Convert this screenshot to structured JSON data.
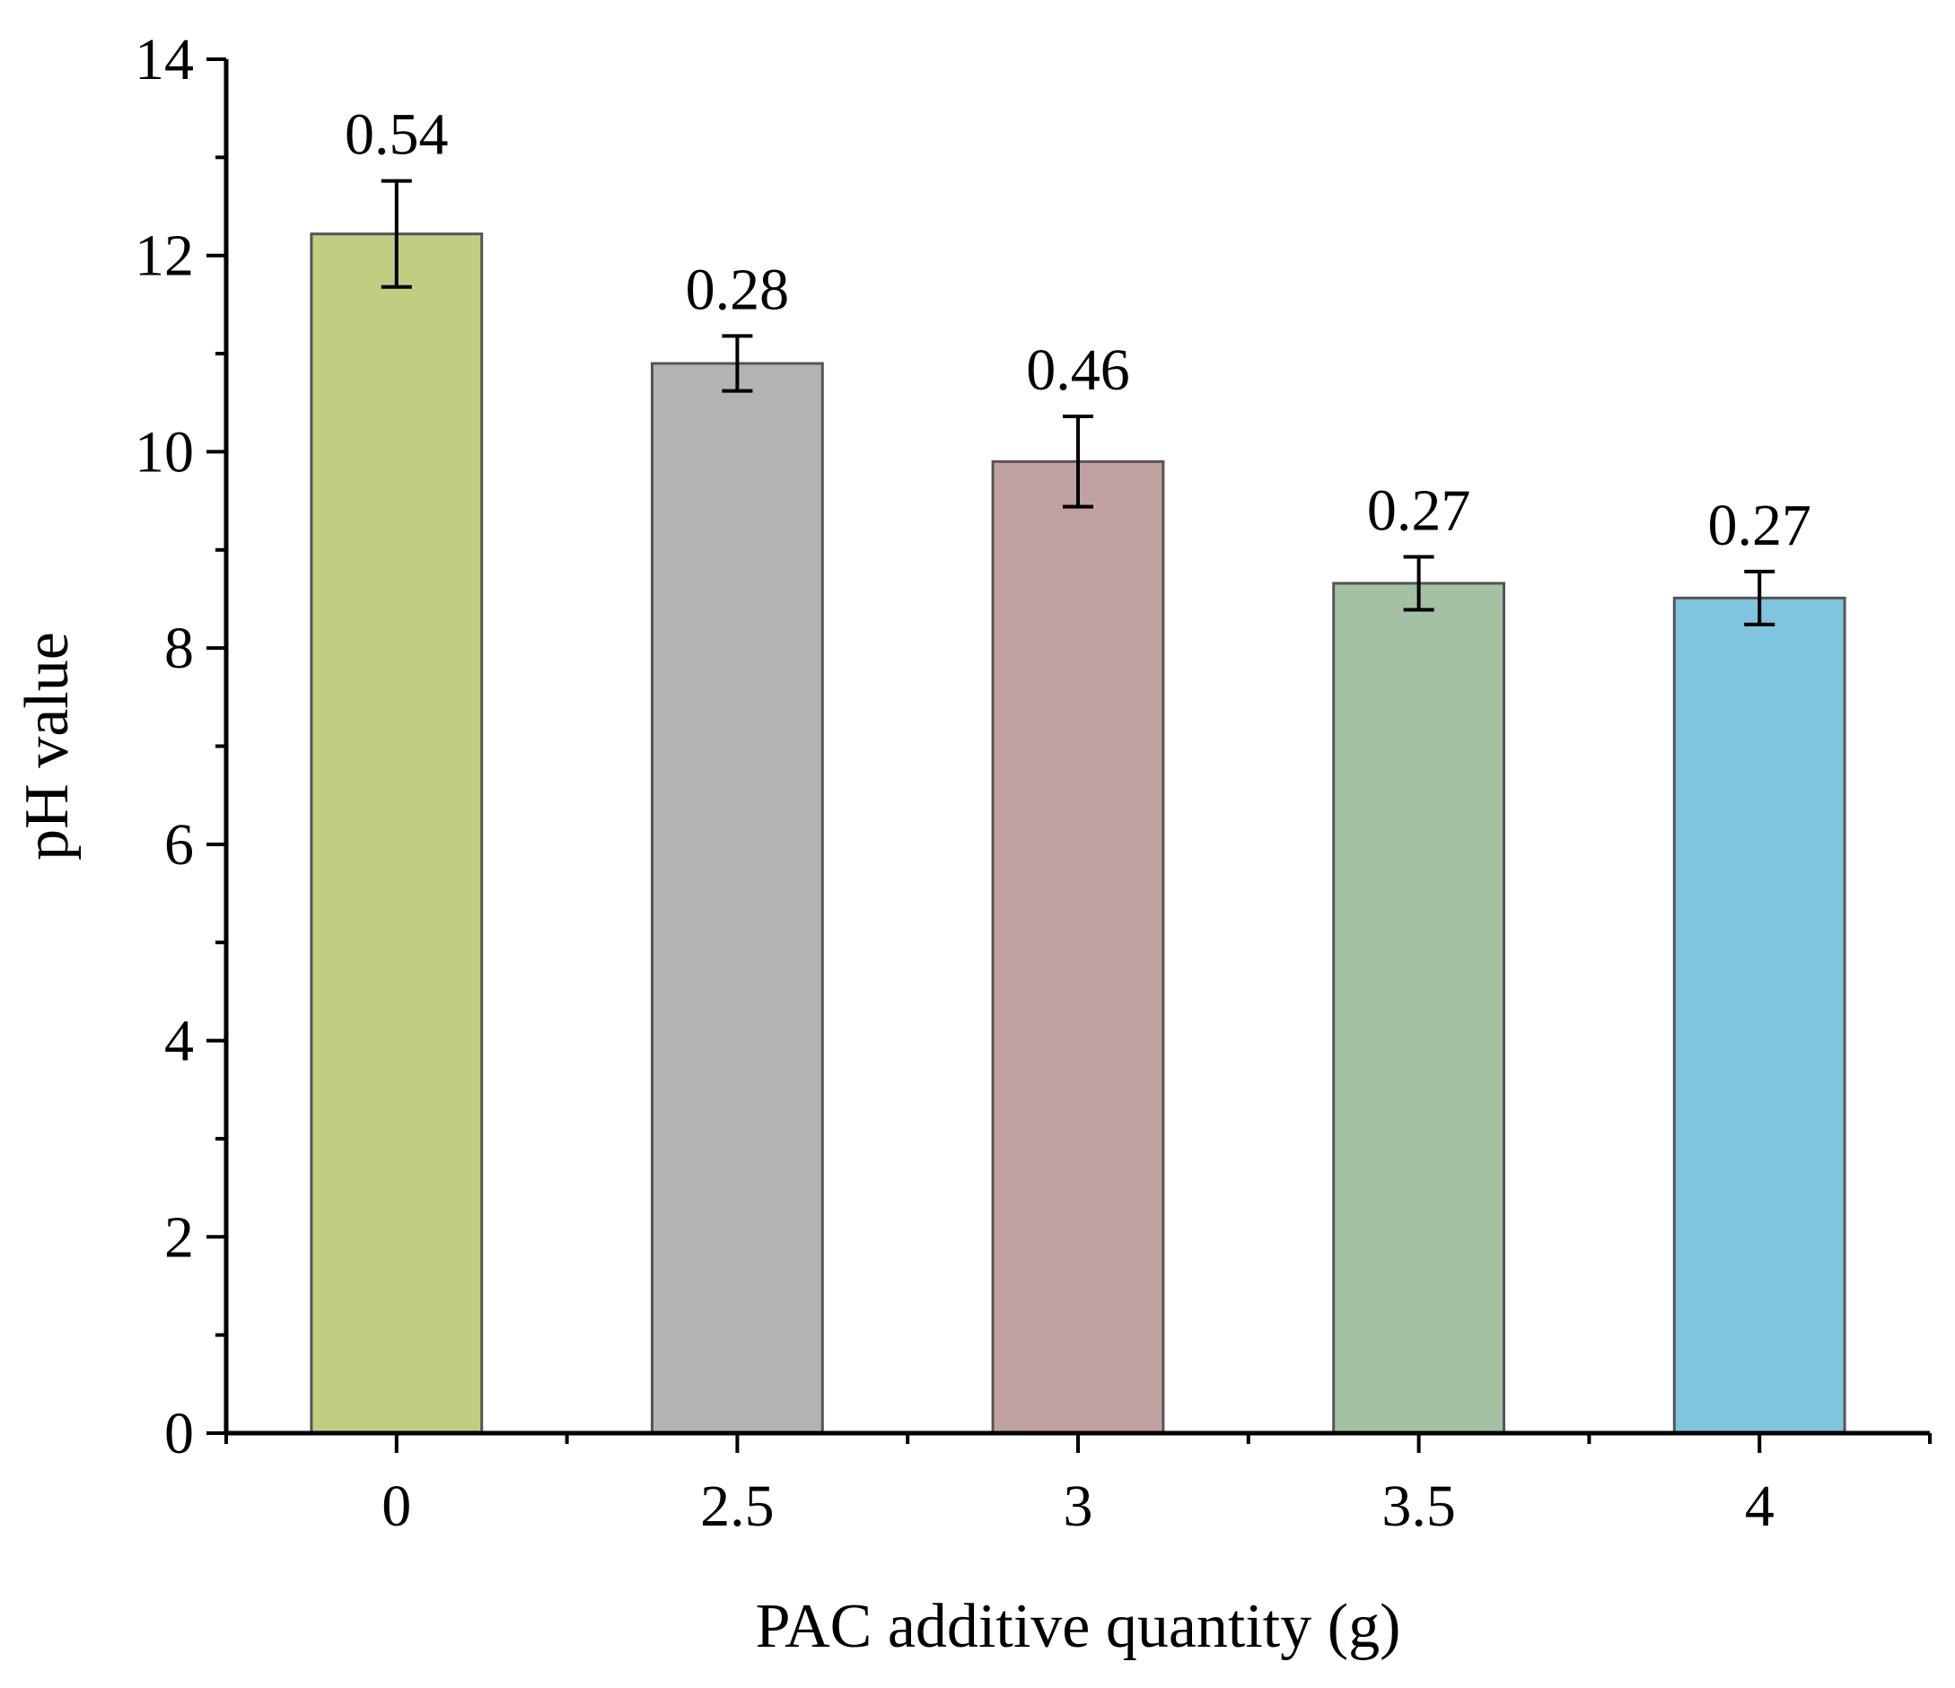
{
  "chart_data": {
    "type": "bar",
    "title": "",
    "xlabel": "PAC additive quantity (g)",
    "ylabel": "pH value",
    "categories": [
      "0",
      "2.5",
      "3",
      "3.5",
      "4"
    ],
    "values": [
      12.22,
      10.9,
      9.9,
      8.66,
      8.51
    ],
    "errors": [
      0.54,
      0.28,
      0.46,
      0.27,
      0.27
    ],
    "data_labels": [
      "0.54",
      "0.28",
      "0.46",
      "0.27",
      "0.27"
    ],
    "colors": [
      "#c0ce82",
      "#b3b3b3",
      "#c0a1a1",
      "#a4c1a4",
      "#80c5de"
    ],
    "ylim": [
      0,
      14
    ],
    "yticks": [
      0,
      2,
      4,
      6,
      8,
      10,
      12,
      14
    ],
    "grid": false,
    "legend": "none"
  }
}
